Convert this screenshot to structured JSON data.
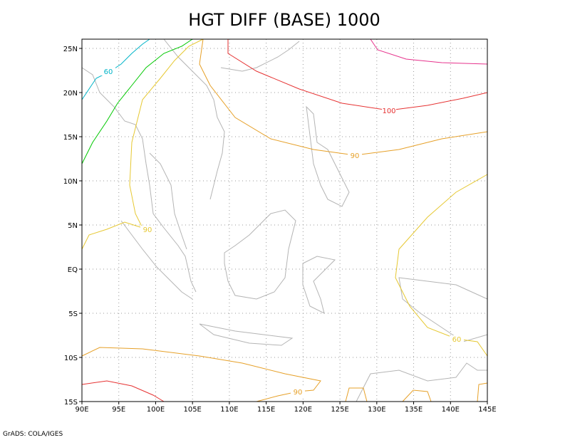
{
  "title": "HGT DIFF (BASE) 1000",
  "x_ticks": [
    "90E",
    "95E",
    "100E",
    "105E",
    "110E",
    "115E",
    "120E",
    "125E",
    "130E",
    "135E",
    "140E",
    "145E"
  ],
  "y_ticks": [
    "25N",
    "20N",
    "15N",
    "10N",
    "5N",
    "EQ",
    "5S",
    "10S",
    "15S"
  ],
  "contour_labels": [
    {
      "text": "60",
      "color": "#00b4c8"
    },
    {
      "text": "100",
      "color": "#e63232"
    },
    {
      "text": "90",
      "color": "#e6a028"
    },
    {
      "text": "90",
      "color": "#e6c832"
    },
    {
      "text": "60",
      "color": "#e6c832"
    },
    {
      "text": "90",
      "color": "#e6a028"
    }
  ],
  "footer": "GrADS: COLA/IGES"
}
